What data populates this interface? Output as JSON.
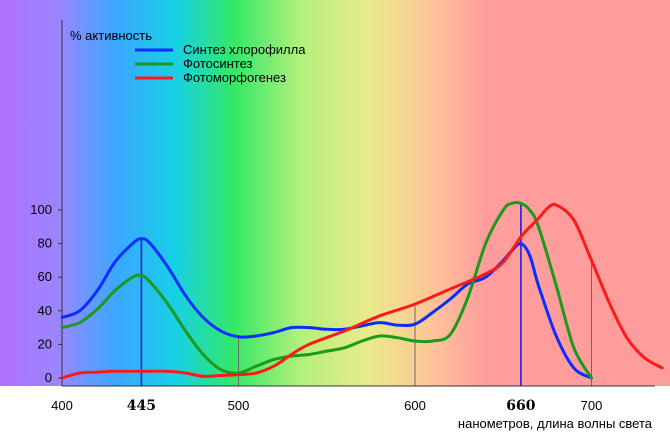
{
  "chart_data": {
    "type": "line",
    "ylabel": "% активность",
    "xlabel": "нанометров, длина волны света",
    "xlim": [
      400,
      750
    ],
    "ylim": [
      0,
      110
    ],
    "x_ticks": [
      {
        "value": 400,
        "label": "400",
        "highlight": false
      },
      {
        "value": 445,
        "label": "445",
        "highlight": true
      },
      {
        "value": 500,
        "label": "500",
        "highlight": false
      },
      {
        "value": 600,
        "label": "600",
        "highlight": false
      },
      {
        "value": 660,
        "label": "660",
        "highlight": true
      },
      {
        "value": 700,
        "label": "700",
        "highlight": false
      }
    ],
    "y_ticks": [
      {
        "value": 0,
        "label": "0"
      },
      {
        "value": 20,
        "label": "20"
      },
      {
        "value": 40,
        "label": "40"
      },
      {
        "value": 60,
        "label": "60"
      },
      {
        "value": 80,
        "label": "80"
      },
      {
        "value": 100,
        "label": "100"
      }
    ],
    "vlines": [
      445,
      500,
      600,
      660,
      700
    ],
    "highlight_color": "#2222cc",
    "background_gradient": [
      {
        "wl": 400,
        "color": "#b070ff"
      },
      {
        "wl": 430,
        "color": "#9a86ff"
      },
      {
        "wl": 460,
        "color": "#3aa8ff"
      },
      {
        "wl": 490,
        "color": "#17d0e6"
      },
      {
        "wl": 520,
        "color": "#33e866"
      },
      {
        "wl": 555,
        "color": "#b4f07a"
      },
      {
        "wl": 590,
        "color": "#eaea8a"
      },
      {
        "wl": 625,
        "color": "#ffc09a"
      },
      {
        "wl": 650,
        "color": "#ff9c9c"
      },
      {
        "wl": 750,
        "color": "#ff9c9c"
      }
    ],
    "series": [
      {
        "name": "Синтез хлорофилла",
        "color": "#0a2eff",
        "x": [
          400,
          410,
          420,
          430,
          440,
          445,
          450,
          460,
          470,
          480,
          490,
          500,
          510,
          520,
          530,
          540,
          550,
          560,
          570,
          580,
          590,
          600,
          610,
          620,
          630,
          640,
          650,
          655,
          660,
          665,
          670,
          680,
          690,
          700
        ],
        "y": [
          36,
          40,
          52,
          69,
          80,
          83,
          80,
          66,
          49,
          36,
          28,
          24.5,
          25,
          27,
          30,
          30,
          29,
          29,
          31,
          33,
          31.5,
          32,
          39,
          47,
          56,
          60,
          70,
          76,
          80,
          73,
          55,
          25,
          6,
          0
        ]
      },
      {
        "name": "Фотосинтез",
        "color": "#1b9a1b",
        "x": [
          400,
          410,
          420,
          430,
          440,
          445,
          450,
          460,
          470,
          480,
          490,
          500,
          510,
          520,
          530,
          540,
          550,
          560,
          570,
          580,
          590,
          600,
          610,
          620,
          630,
          640,
          650,
          655,
          660,
          665,
          670,
          680,
          690,
          700
        ],
        "y": [
          30,
          33,
          41,
          52,
          60,
          61,
          57,
          44,
          28,
          14,
          5,
          3,
          7,
          11,
          13,
          14,
          16,
          18,
          22,
          25,
          24,
          22,
          22,
          26,
          48,
          80,
          100,
          104,
          104,
          100,
          90,
          55,
          18,
          0
        ]
      },
      {
        "name": "Фотоморфогенез",
        "color": "#ff1a1a",
        "x": [
          400,
          410,
          420,
          430,
          445,
          460,
          470,
          480,
          490,
          500,
          510,
          520,
          530,
          540,
          560,
          580,
          600,
          620,
          640,
          650,
          660,
          670,
          675,
          680,
          690,
          700,
          710,
          720,
          730,
          740
        ],
        "y": [
          0,
          3,
          3.5,
          4,
          4,
          4,
          3,
          1,
          1.5,
          2,
          3,
          7,
          14,
          20,
          28,
          37,
          44,
          53,
          62,
          69,
          84,
          95,
          101,
          103,
          94,
          70,
          45,
          24,
          12,
          6
        ]
      }
    ]
  }
}
